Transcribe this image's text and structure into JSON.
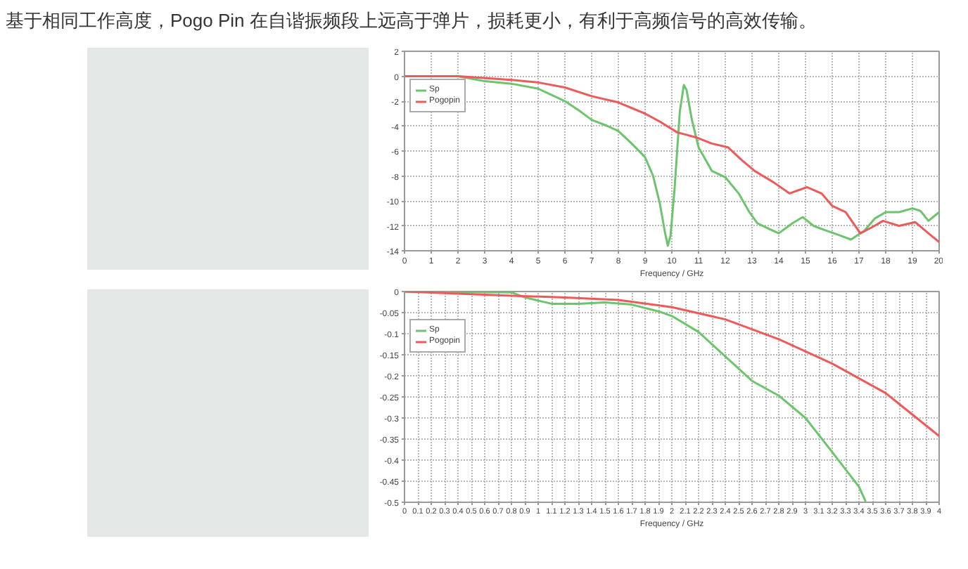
{
  "chart_data": [
    {
      "type": "line",
      "title": "基于相同工作高度，Pogo Pin 在自谐振频段上远高于弹片，损耗更小，有利于高频信号的高效传输。",
      "xlabel": "Frequency / GHz",
      "xlim": [
        0,
        20
      ],
      "ylim": [
        -14,
        2
      ],
      "xticks": [
        0,
        1,
        2,
        3,
        4,
        5,
        6,
        7,
        8,
        9,
        10,
        11,
        12,
        13,
        14,
        15,
        16,
        17,
        18,
        19,
        20
      ],
      "yticks": [
        2,
        0,
        -2,
        -4,
        -6,
        -8,
        -10,
        -12,
        -14
      ],
      "grid": true,
      "legend": "top left",
      "series": [
        {
          "name": "Sp",
          "color": "#6cc46c",
          "x": [
            0,
            2,
            3,
            4,
            5,
            5.5,
            6,
            6.5,
            7,
            7.6,
            8,
            8.5,
            9,
            9.3,
            9.55,
            9.75,
            9.85,
            9.95,
            10.1,
            10.3,
            10.45,
            10.55,
            10.75,
            11,
            11.5,
            12,
            12.5,
            12.9,
            13.2,
            13.6,
            14,
            14.5,
            14.9,
            15.3,
            15.8,
            16.2,
            16.7,
            17.2,
            17.6,
            18,
            18.5,
            19,
            19.3,
            19.6,
            20
          ],
          "values": [
            0,
            0,
            -0.4,
            -0.6,
            -1.0,
            -1.5,
            -2.0,
            -2.7,
            -3.5,
            -4.0,
            -4.4,
            -5.4,
            -6.5,
            -8.0,
            -10.2,
            -12.6,
            -13.6,
            -12.8,
            -9.1,
            -2.8,
            -0.7,
            -1.1,
            -3.5,
            -5.7,
            -7.6,
            -8.1,
            -9.4,
            -10.9,
            -11.8,
            -12.2,
            -12.6,
            -11.8,
            -11.3,
            -12.0,
            -12.4,
            -12.7,
            -13.1,
            -12.4,
            -11.4,
            -10.9,
            -10.9,
            -10.6,
            -10.8,
            -11.6,
            -10.9
          ]
        },
        {
          "name": "Pogopin",
          "color": "#ee5a5a",
          "x": [
            0,
            2,
            4,
            5,
            6,
            7,
            8,
            9,
            9.6,
            10.2,
            10.9,
            11.5,
            12.1,
            12.6,
            13.1,
            13.8,
            14.4,
            15.05,
            15.6,
            16,
            16.5,
            17.05,
            17.5,
            17.9,
            18.5,
            19.1,
            19.6,
            20
          ],
          "values": [
            0,
            0,
            -0.3,
            -0.5,
            -0.9,
            -1.6,
            -2.1,
            -3.0,
            -3.7,
            -4.5,
            -4.9,
            -5.4,
            -5.7,
            -6.7,
            -7.6,
            -8.5,
            -9.4,
            -8.9,
            -9.4,
            -10.4,
            -10.9,
            -12.6,
            -12.1,
            -11.6,
            -12.0,
            -11.7,
            -12.6,
            -13.3
          ]
        }
      ]
    },
    {
      "type": "line",
      "xlabel": "Frequency / GHz",
      "xlim": [
        0,
        4
      ],
      "ylim": [
        -0.5,
        0
      ],
      "xticks": [
        0,
        0.1,
        0.2,
        0.3,
        0.4,
        0.5,
        0.6,
        0.7,
        0.8,
        0.9,
        1,
        1.1,
        1.2,
        1.3,
        1.4,
        1.5,
        1.6,
        1.7,
        1.8,
        1.9,
        2,
        2.1,
        2.2,
        2.3,
        2.4,
        2.5,
        2.6,
        2.7,
        2.8,
        2.9,
        3,
        3.1,
        3.2,
        3.3,
        3.4,
        3.5,
        3.6,
        3.7,
        3.8,
        3.9,
        4
      ],
      "yticks": [
        0,
        -0.05,
        -0.1,
        -0.15,
        -0.2,
        -0.25,
        -0.3,
        -0.35,
        -0.4,
        -0.45,
        -0.5
      ],
      "grid": true,
      "legend": "top left",
      "series": [
        {
          "name": "Sp",
          "color": "#6cc46c",
          "x": [
            0,
            0.8,
            0.9,
            1.1,
            1.3,
            1.5,
            1.7,
            1.9,
            2.0,
            2.2,
            2.4,
            2.6,
            2.8,
            3.0,
            3.2,
            3.4,
            3.45
          ],
          "values": [
            0,
            -0.002,
            -0.014,
            -0.029,
            -0.029,
            -0.026,
            -0.031,
            -0.047,
            -0.058,
            -0.096,
            -0.154,
            -0.212,
            -0.247,
            -0.3,
            -0.381,
            -0.463,
            -0.498
          ]
        },
        {
          "name": "Pogopin",
          "color": "#ee5a5a",
          "x": [
            0,
            0.8,
            1.2,
            1.6,
            2.0,
            2.4,
            2.8,
            3.2,
            3.6,
            4.0
          ],
          "values": [
            0,
            -0.01,
            -0.014,
            -0.02,
            -0.037,
            -0.066,
            -0.113,
            -0.171,
            -0.241,
            -0.343
          ]
        }
      ]
    }
  ]
}
